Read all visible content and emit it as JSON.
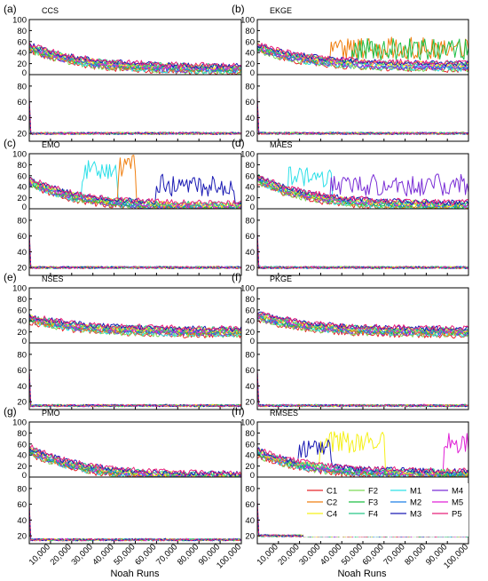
{
  "chart_data": {
    "type": "line",
    "xlabel": "Noah Runs",
    "x_tick_labels": [
      "10,000",
      "20,000",
      "30,000",
      "40,000",
      "50,000",
      "60,000",
      "70,000",
      "80,000",
      "90,000",
      "100,000"
    ],
    "xlim": [
      0,
      100000
    ],
    "upper_ylim": [
      0,
      100
    ],
    "upper_yticks": [
      "0",
      "20",
      "40",
      "60",
      "80",
      "100"
    ],
    "lower_yticks": [
      "20",
      "40",
      "60",
      "80"
    ],
    "grid": false,
    "legend": {
      "placement": "inside-bottom-right of panel (h)",
      "entries": [
        {
          "name": "C1",
          "color": "#e8262b"
        },
        {
          "name": "F2",
          "color": "#7ed957"
        },
        {
          "name": "M1",
          "color": "#2ee0e8"
        },
        {
          "name": "M4",
          "color": "#7a2ed6"
        },
        {
          "name": "C2",
          "color": "#f07f10"
        },
        {
          "name": "F3",
          "color": "#1fbf45"
        },
        {
          "name": "M2",
          "color": "#1f7fe6"
        },
        {
          "name": "M5",
          "color": "#e020d6"
        },
        {
          "name": "C4",
          "color": "#f5f01a"
        },
        {
          "name": "F4",
          "color": "#28c888"
        },
        {
          "name": "M3",
          "color": "#1a1ab4"
        },
        {
          "name": "P5",
          "color": "#e8207a"
        }
      ]
    },
    "panels": [
      {
        "letter": "(a)",
        "title": "CCS",
        "upper_start": 50,
        "upper_end": 10,
        "lower_level": 20,
        "spikes": []
      },
      {
        "letter": "(b)",
        "title": "EKGE",
        "upper_start": 50,
        "upper_end": 15,
        "lower_level": 20,
        "spikes": [
          {
            "series": "C2",
            "from_x": 35000,
            "to_x": 100000,
            "level": 40
          },
          {
            "series": "F3",
            "from_x": 45000,
            "to_x": 100000,
            "level": 38
          }
        ]
      },
      {
        "letter": "(c)",
        "title": "EMO",
        "upper_start": 50,
        "upper_end": 3,
        "lower_level": 20,
        "spikes": [
          {
            "series": "M1",
            "from_x": 25000,
            "to_x": 42000,
            "level": 60
          },
          {
            "series": "C2",
            "from_x": 42000,
            "to_x": 50000,
            "level": 70
          },
          {
            "series": "M3",
            "from_x": 60000,
            "to_x": 97000,
            "level": 35
          }
        ]
      },
      {
        "letter": "(d)",
        "title": "MAES",
        "upper_start": 55,
        "upper_end": 5,
        "lower_level": 20,
        "spikes": [
          {
            "series": "M4",
            "from_x": 35000,
            "to_x": 100000,
            "level": 35
          },
          {
            "series": "M1",
            "from_x": 15000,
            "to_x": 35000,
            "level": 50
          }
        ]
      },
      {
        "letter": "(e)",
        "title": "NSES",
        "upper_start": 45,
        "upper_end": 20,
        "lower_level": 15,
        "spikes": []
      },
      {
        "letter": "(f)",
        "title": "PKGE",
        "upper_start": 50,
        "upper_end": 20,
        "lower_level": 15,
        "spikes": []
      },
      {
        "letter": "(g)",
        "title": "PMO",
        "upper_start": 50,
        "upper_end": 0,
        "lower_level": 15,
        "spikes": []
      },
      {
        "letter": "(h)",
        "title": "RMSES",
        "upper_start": 45,
        "upper_end": 5,
        "lower_level": 20,
        "spikes": [
          {
            "series": "C4",
            "from_x": 30000,
            "to_x": 60000,
            "level": 55
          },
          {
            "series": "M5",
            "from_x": 88000,
            "to_x": 100000,
            "level": 55
          },
          {
            "series": "M3",
            "from_x": 20000,
            "to_x": 35000,
            "level": 40
          }
        ]
      }
    ]
  }
}
